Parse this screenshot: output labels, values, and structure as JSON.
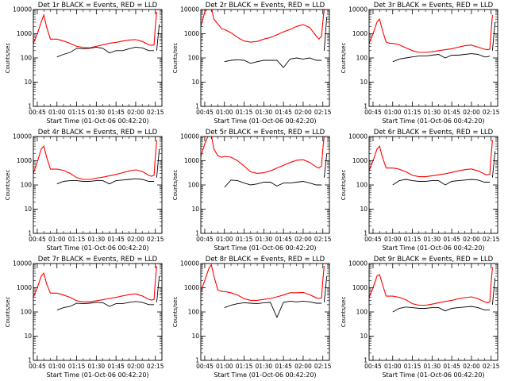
{
  "figure": {
    "x_time_axis_label": "Start Time (01-Oct-06 00:42:20)",
    "y_axis_label": "Counts/sec",
    "x_tick_labels": [
      "00:45",
      "01:00",
      "01:15",
      "01:30",
      "01:45",
      "02:00",
      "02:15"
    ],
    "y_tick_labels": [
      "1",
      "10",
      "100",
      "1000",
      "10000"
    ],
    "colors": {
      "events": "#000000",
      "lld": "#ff0000",
      "axes": "#000000",
      "background": "#ffffff"
    }
  },
  "chart_data": [
    {
      "type": "line",
      "title": "Det 1r BLACK = Events, RED = LLD",
      "xlabel": "Start Time (01-Oct-06 00:42:20)",
      "ylabel": "Counts/sec",
      "xlim": [
        "00:42",
        "02:20"
      ],
      "ylim": [
        1,
        10000
      ],
      "yscale": "log",
      "x": [
        "00:42",
        "00:45",
        "00:48",
        "00:50",
        "00:52",
        "00:55",
        "00:58",
        "01:00",
        "01:05",
        "01:10",
        "01:15",
        "01:20",
        "01:25",
        "01:30",
        "01:35",
        "01:40",
        "01:45",
        "01:50",
        "01:55",
        "02:00",
        "02:05",
        "02:10",
        "02:12",
        "02:14",
        "02:15",
        "02:16",
        "02:18",
        "02:20"
      ],
      "series": [
        {
          "name": "BLACK = Events",
          "values": [
            null,
            null,
            null,
            null,
            null,
            null,
            null,
            110,
            140,
            170,
            250,
            240,
            250,
            280,
            250,
            160,
            200,
            200,
            240,
            280,
            260,
            200,
            200,
            200,
            null,
            200,
            2500,
            null
          ]
        },
        {
          "name": "RED = LLD",
          "values": [
            400,
            1000,
            3000,
            6000,
            2000,
            600,
            600,
            600,
            500,
            400,
            300,
            270,
            260,
            300,
            350,
            400,
            440,
            500,
            550,
            570,
            480,
            350,
            330,
            350,
            2000,
            8000,
            null,
            null
          ]
        }
      ]
    },
    {
      "type": "line",
      "title": "Det 2r BLACK = Events, RED = LLD",
      "xlabel": "Start Time (01-Oct-06 00:42:20)",
      "ylabel": "Counts/sec",
      "xlim": [
        "00:42",
        "02:20"
      ],
      "ylim": [
        1,
        10000
      ],
      "yscale": "log",
      "x": [
        "00:42",
        "00:45",
        "00:48",
        "00:50",
        "00:52",
        "00:55",
        "00:58",
        "01:00",
        "01:05",
        "01:10",
        "01:15",
        "01:20",
        "01:25",
        "01:30",
        "01:35",
        "01:40",
        "01:45",
        "01:50",
        "01:55",
        "02:00",
        "02:05",
        "02:10",
        "02:12",
        "02:14",
        "02:15",
        "02:16",
        "02:18",
        "02:20"
      ],
      "series": [
        {
          "name": "BLACK = Events",
          "values": [
            null,
            null,
            null,
            null,
            null,
            null,
            null,
            70,
            80,
            85,
            80,
            60,
            70,
            80,
            80,
            80,
            40,
            90,
            100,
            90,
            100,
            80,
            80,
            80,
            null,
            200,
            5000,
            null
          ]
        },
        {
          "name": "RED = LLD",
          "values": [
            2000,
            8000,
            12000,
            12000,
            4000,
            2500,
            1600,
            1500,
            1100,
            700,
            500,
            450,
            480,
            600,
            700,
            900,
            1200,
            1500,
            2000,
            2400,
            1800,
            800,
            600,
            800,
            3000,
            10000,
            null,
            null
          ]
        }
      ]
    },
    {
      "type": "line",
      "title": "Det 3r BLACK = Events, RED = LLD",
      "xlabel": "Start Time (01-Oct-06 00:42:20)",
      "ylabel": "Counts/sec",
      "xlim": [
        "00:42",
        "02:20"
      ],
      "ylim": [
        1,
        10000
      ],
      "yscale": "log",
      "x": [
        "00:42",
        "00:45",
        "00:48",
        "00:50",
        "00:52",
        "00:55",
        "00:58",
        "01:00",
        "01:05",
        "01:10",
        "01:15",
        "01:20",
        "01:25",
        "01:30",
        "01:35",
        "01:40",
        "01:45",
        "01:50",
        "01:55",
        "02:00",
        "02:05",
        "02:10",
        "02:12",
        "02:14",
        "02:15",
        "02:16",
        "02:18",
        "02:20"
      ],
      "series": [
        {
          "name": "BLACK = Events",
          "values": [
            null,
            null,
            null,
            null,
            null,
            null,
            null,
            70,
            90,
            100,
            110,
            120,
            120,
            130,
            140,
            100,
            130,
            130,
            140,
            150,
            140,
            110,
            110,
            120,
            null,
            200,
            3000,
            null
          ]
        },
        {
          "name": "RED = LLD",
          "values": [
            400,
            1000,
            3000,
            4000,
            1500,
            450,
            400,
            400,
            350,
            260,
            200,
            170,
            170,
            180,
            200,
            220,
            240,
            280,
            320,
            340,
            280,
            230,
            220,
            230,
            1200,
            6000,
            null,
            null
          ]
        }
      ]
    },
    {
      "type": "line",
      "title": "Det 4r BLACK = Events, RED = LLD",
      "xlabel": "Start Time (01-Oct-06 00:42:20)",
      "ylabel": "Counts/sec",
      "xlim": [
        "00:42",
        "02:20"
      ],
      "ylim": [
        1,
        10000
      ],
      "yscale": "log",
      "x": [
        "00:42",
        "00:45",
        "00:48",
        "00:50",
        "00:52",
        "00:55",
        "00:58",
        "01:00",
        "01:05",
        "01:10",
        "01:15",
        "01:20",
        "01:25",
        "01:30",
        "01:35",
        "01:40",
        "01:45",
        "01:50",
        "01:55",
        "02:00",
        "02:05",
        "02:10",
        "02:12",
        "02:14",
        "02:15",
        "02:16",
        "02:18",
        "02:20"
      ],
      "series": [
        {
          "name": "BLACK = Events",
          "values": [
            null,
            null,
            null,
            null,
            null,
            null,
            null,
            110,
            140,
            150,
            150,
            140,
            140,
            150,
            150,
            110,
            150,
            160,
            170,
            180,
            170,
            140,
            140,
            140,
            null,
            200,
            3000,
            null
          ]
        },
        {
          "name": "RED = LLD",
          "values": [
            300,
            900,
            3000,
            4000,
            1500,
            450,
            450,
            450,
            400,
            300,
            200,
            170,
            170,
            190,
            210,
            240,
            270,
            320,
            380,
            420,
            360,
            250,
            230,
            250,
            1500,
            7000,
            null,
            null
          ]
        }
      ]
    },
    {
      "type": "line",
      "title": "Det 5r BLACK = Events, RED = LLD",
      "xlabel": "Start Time (01-Oct-06 00:42:20)",
      "ylabel": "Counts/sec",
      "xlim": [
        "00:42",
        "02:20"
      ],
      "ylim": [
        1,
        10000
      ],
      "yscale": "log",
      "x": [
        "00:42",
        "00:45",
        "00:48",
        "00:50",
        "00:52",
        "00:55",
        "00:58",
        "01:00",
        "01:05",
        "01:10",
        "01:15",
        "01:20",
        "01:25",
        "01:30",
        "01:35",
        "01:40",
        "01:45",
        "01:50",
        "01:55",
        "02:00",
        "02:05",
        "02:10",
        "02:12",
        "02:14",
        "02:15",
        "02:16",
        "02:18",
        "02:20"
      ],
      "series": [
        {
          "name": "BLACK = Events",
          "values": [
            null,
            null,
            null,
            null,
            null,
            null,
            null,
            80,
            160,
            150,
            120,
            100,
            110,
            130,
            130,
            90,
            120,
            120,
            130,
            140,
            120,
            100,
            100,
            100,
            null,
            200,
            2000,
            null
          ]
        },
        {
          "name": "RED = LLD",
          "values": [
            1500,
            5000,
            12000,
            12000,
            3000,
            1600,
            1400,
            1500,
            1400,
            1000,
            600,
            350,
            300,
            320,
            380,
            500,
            650,
            850,
            1050,
            1100,
            850,
            550,
            500,
            600,
            3000,
            10000,
            null,
            null
          ]
        }
      ]
    },
    {
      "type": "line",
      "title": "Det 6r BLACK = Events, RED = LLD",
      "xlabel": "Start Time (01-Oct-06 00:42:20)",
      "ylabel": "Counts/sec",
      "xlim": [
        "00:42",
        "02:20"
      ],
      "ylim": [
        1,
        10000
      ],
      "yscale": "log",
      "x": [
        "00:42",
        "00:45",
        "00:48",
        "00:50",
        "00:52",
        "00:55",
        "00:58",
        "01:00",
        "01:05",
        "01:10",
        "01:15",
        "01:20",
        "01:25",
        "01:30",
        "01:35",
        "01:40",
        "01:45",
        "01:50",
        "01:55",
        "02:00",
        "02:05",
        "02:10",
        "02:12",
        "02:14",
        "02:15",
        "02:16",
        "02:18",
        "02:20"
      ],
      "series": [
        {
          "name": "BLACK = Events",
          "values": [
            null,
            null,
            null,
            null,
            null,
            null,
            null,
            100,
            150,
            170,
            150,
            140,
            140,
            150,
            150,
            100,
            140,
            150,
            160,
            170,
            160,
            130,
            130,
            130,
            null,
            200,
            2500,
            null
          ]
        },
        {
          "name": "RED = LLD",
          "values": [
            400,
            1000,
            3000,
            4000,
            1500,
            500,
            500,
            500,
            450,
            350,
            250,
            220,
            220,
            240,
            260,
            290,
            330,
            380,
            430,
            460,
            380,
            280,
            260,
            280,
            1500,
            7000,
            null,
            null
          ]
        }
      ]
    },
    {
      "type": "line",
      "title": "Det 7r BLACK = Events, RED = LLD",
      "xlabel": "Start Time (01-Oct-06 00:42:20)",
      "ylabel": "Counts/sec",
      "xlim": [
        "00:42",
        "02:20"
      ],
      "ylim": [
        1,
        10000
      ],
      "yscale": "log",
      "x": [
        "00:42",
        "00:45",
        "00:48",
        "00:50",
        "00:52",
        "00:55",
        "00:58",
        "01:00",
        "01:05",
        "01:10",
        "01:15",
        "01:20",
        "01:25",
        "01:30",
        "01:35",
        "01:40",
        "01:45",
        "01:50",
        "01:55",
        "02:00",
        "02:05",
        "02:10",
        "02:12",
        "02:14",
        "02:15",
        "02:16",
        "02:18",
        "02:20"
      ],
      "series": [
        {
          "name": "BLACK = Events",
          "values": [
            null,
            null,
            null,
            null,
            null,
            null,
            null,
            120,
            150,
            170,
            230,
            220,
            230,
            250,
            240,
            170,
            220,
            220,
            250,
            270,
            250,
            200,
            200,
            200,
            null,
            250,
            3000,
            null
          ]
        },
        {
          "name": "RED = LLD",
          "values": [
            400,
            1000,
            3000,
            4000,
            1500,
            600,
            600,
            600,
            500,
            400,
            290,
            260,
            260,
            290,
            320,
            360,
            400,
            460,
            520,
            560,
            460,
            330,
            310,
            330,
            2000,
            8000,
            null,
            null
          ]
        }
      ]
    },
    {
      "type": "line",
      "title": "Det 8r BLACK = Events, RED = LLD",
      "xlabel": "Start Time (01-Oct-06 00:42:20)",
      "ylabel": "Counts/sec",
      "xlim": [
        "00:42",
        "02:20"
      ],
      "ylim": [
        1,
        10000
      ],
      "yscale": "log",
      "x": [
        "00:42",
        "00:45",
        "00:48",
        "00:50",
        "00:52",
        "00:55",
        "00:58",
        "01:00",
        "01:05",
        "01:10",
        "01:15",
        "01:20",
        "01:25",
        "01:30",
        "01:35",
        "01:40",
        "01:45",
        "01:50",
        "01:55",
        "02:00",
        "02:05",
        "02:10",
        "02:12",
        "02:14",
        "02:15",
        "02:16",
        "02:18",
        "02:20"
      ],
      "series": [
        {
          "name": "BLACK = Events",
          "values": [
            null,
            null,
            null,
            null,
            null,
            null,
            null,
            150,
            190,
            220,
            240,
            230,
            220,
            240,
            250,
            60,
            250,
            280,
            260,
            280,
            260,
            230,
            230,
            230,
            null,
            250,
            3000,
            null
          ]
        },
        {
          "name": "RED = LLD",
          "values": [
            700,
            2000,
            6000,
            9000,
            3000,
            800,
            700,
            700,
            620,
            500,
            350,
            300,
            300,
            330,
            360,
            420,
            500,
            620,
            620,
            640,
            520,
            380,
            360,
            380,
            2000,
            8000,
            null,
            null
          ]
        }
      ]
    },
    {
      "type": "line",
      "title": "Det 9r BLACK = Events, RED = LLD",
      "xlabel": "Start Time (01-Oct-06 00:42:20)",
      "ylabel": "Counts/sec",
      "xlim": [
        "00:42",
        "02:20"
      ],
      "ylim": [
        1,
        10000
      ],
      "yscale": "log",
      "x": [
        "00:42",
        "00:45",
        "00:48",
        "00:50",
        "00:52",
        "00:55",
        "00:58",
        "01:00",
        "01:05",
        "01:10",
        "01:15",
        "01:20",
        "01:25",
        "01:30",
        "01:35",
        "01:40",
        "01:45",
        "01:50",
        "01:55",
        "02:00",
        "02:05",
        "02:10",
        "02:12",
        "02:14",
        "02:15",
        "02:16",
        "02:18",
        "02:20"
      ],
      "series": [
        {
          "name": "BLACK = Events",
          "values": [
            null,
            null,
            null,
            null,
            null,
            null,
            null,
            100,
            140,
            160,
            150,
            140,
            140,
            150,
            150,
            110,
            140,
            150,
            160,
            170,
            150,
            120,
            120,
            120,
            null,
            200,
            2500,
            null
          ]
        },
        {
          "name": "RED = LLD",
          "values": [
            400,
            1000,
            3000,
            3500,
            1500,
            450,
            450,
            450,
            400,
            320,
            220,
            190,
            190,
            210,
            240,
            270,
            300,
            350,
            390,
            420,
            350,
            260,
            240,
            260,
            1500,
            7000,
            null,
            null
          ]
        }
      ]
    }
  ]
}
